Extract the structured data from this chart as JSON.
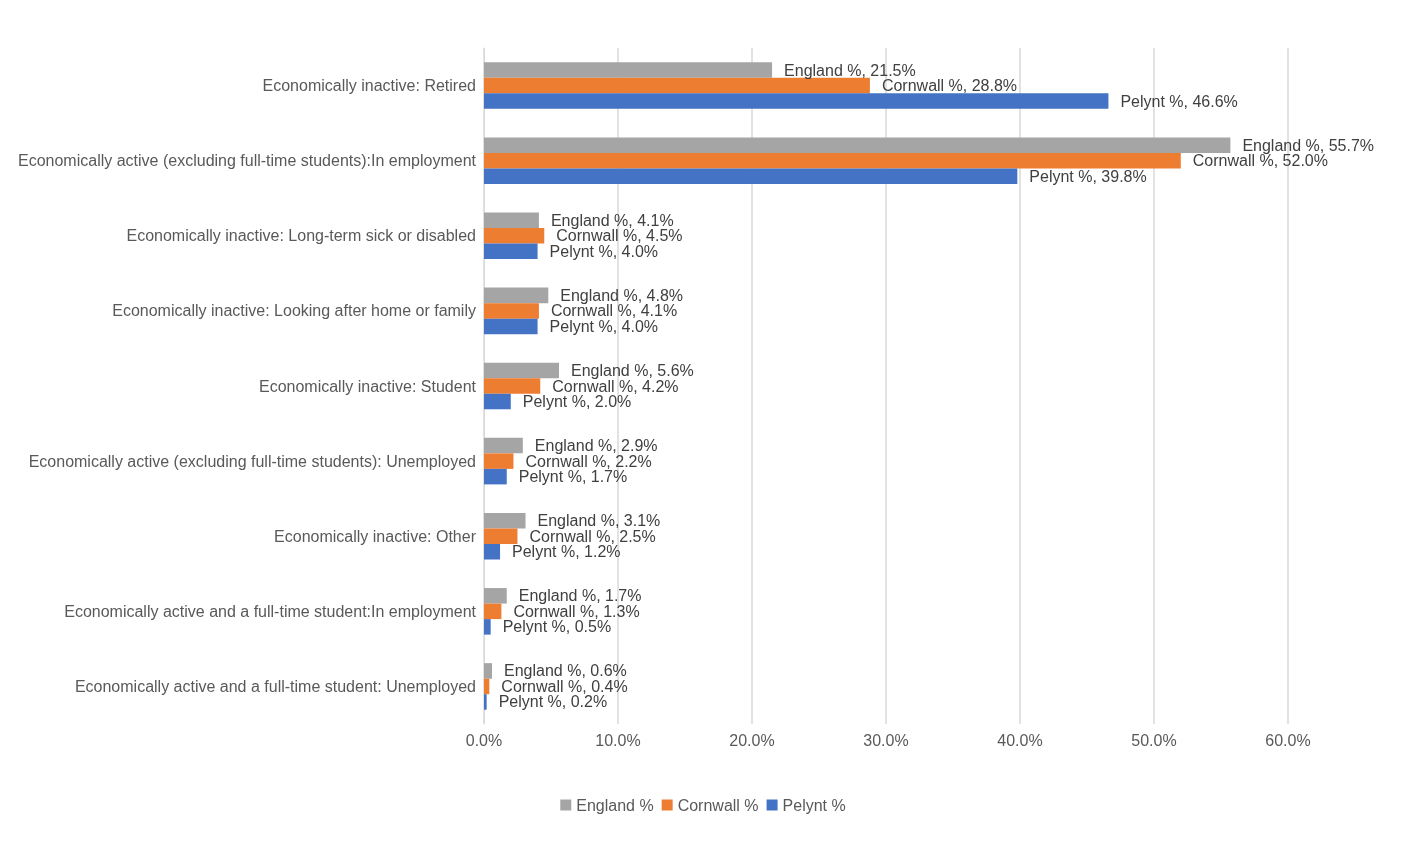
{
  "chart_data": {
    "type": "bar",
    "orientation": "horizontal",
    "categories": [
      "Economically inactive: Retired",
      "Economically active (excluding full-time students):In employment",
      "Economically inactive: Long-term sick or disabled",
      "Economically inactive: Looking after home or family",
      "Economically inactive: Student",
      "Economically active (excluding full-time students): Unemployed",
      "Economically inactive: Other",
      "Economically active and a full-time student:In employment",
      "Economically active and a full-time student: Unemployed"
    ],
    "series": [
      {
        "name": "England %",
        "color": "#a5a5a5",
        "values": [
          21.5,
          55.7,
          4.1,
          4.8,
          5.6,
          2.9,
          3.1,
          1.7,
          0.6
        ],
        "value_labels": [
          "England %, 21.5%",
          "England %, 55.7%",
          "England %, 4.1%",
          "England %, 4.8%",
          "England %, 5.6%",
          "England %, 2.9%",
          "England %, 3.1%",
          "England %, 1.7%",
          "England %, 0.6%"
        ]
      },
      {
        "name": "Cornwall %",
        "color": "#ed7d31",
        "values": [
          28.8,
          52.0,
          4.5,
          4.1,
          4.2,
          2.2,
          2.5,
          1.3,
          0.4
        ],
        "value_labels": [
          "Cornwall %, 28.8%",
          "Cornwall %, 52.0%",
          "Cornwall %, 4.5%",
          "Cornwall %, 4.1%",
          "Cornwall %, 4.2%",
          "Cornwall %, 2.2%",
          "Cornwall %, 2.5%",
          "Cornwall %, 1.3%",
          "Cornwall %, 0.4%"
        ]
      },
      {
        "name": "Pelynt %",
        "color": "#4472c4",
        "values": [
          46.6,
          39.8,
          4.0,
          4.0,
          2.0,
          1.7,
          1.2,
          0.5,
          0.2
        ],
        "value_labels": [
          "Pelynt %, 46.6%",
          "Pelynt %, 39.8%",
          "Pelynt %, 4.0%",
          "Pelynt %, 4.0%",
          "Pelynt %, 2.0%",
          "Pelynt %, 1.7%",
          "Pelynt %, 1.2%",
          "Pelynt %, 0.5%",
          "Pelynt %, 0.2%"
        ]
      }
    ],
    "xlim": [
      0,
      60
    ],
    "xticks": [
      {
        "value": 0,
        "label": "0.0%"
      },
      {
        "value": 10,
        "label": "10.0%"
      },
      {
        "value": 20,
        "label": "20.0%"
      },
      {
        "value": 30,
        "label": "30.0%"
      },
      {
        "value": 40,
        "label": "40.0%"
      },
      {
        "value": 50,
        "label": "50.0%"
      },
      {
        "value": 60,
        "label": "60.0%"
      }
    ],
    "grid": "x",
    "legend": "bottom"
  }
}
